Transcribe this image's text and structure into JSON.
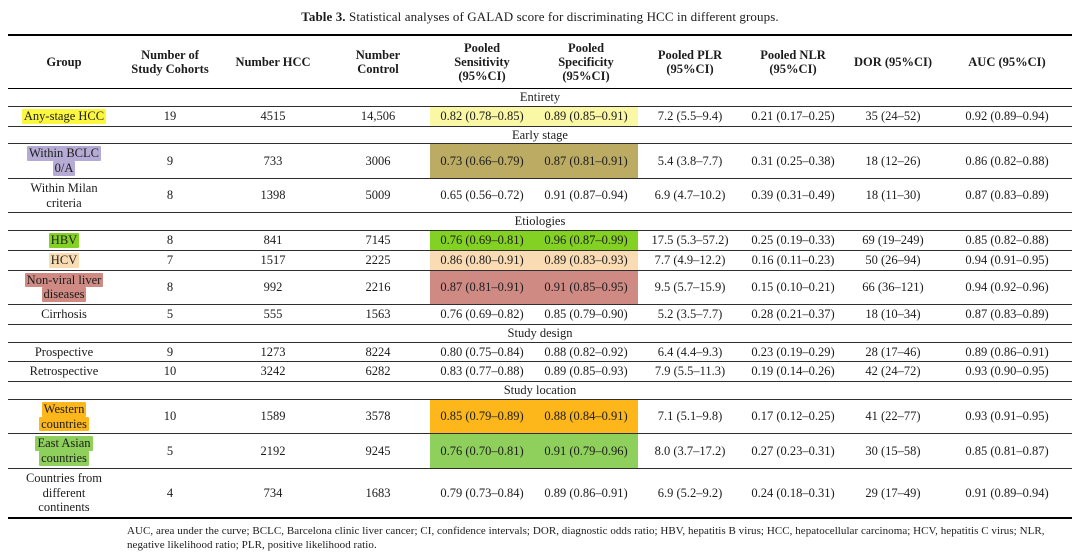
{
  "caption": {
    "bold": "Table 3.",
    "text": " Statistical analyses of GALAD score for discriminating HCC in different groups."
  },
  "table": {
    "columns": [
      "Group",
      "Number of\nStudy Cohorts",
      "Number HCC",
      "Number\nControl",
      "Pooled\nSensitivity\n(95%CI)",
      "Pooled\nSpecificity\n(95%CI)",
      "Pooled PLR\n(95%CI)",
      "Pooled NLR\n(95%CI)",
      "DOR (95%CI)",
      "AUC (95%CI)"
    ],
    "sections": [
      {
        "name": "Entirety",
        "rows": [
          {
            "group_lines": [
              "Any-stage HCC"
            ],
            "group_highlight": "#fbf73f",
            "value_highlight": "#faf8a5",
            "cohorts": "19",
            "hcc": "4515",
            "control": "14,506",
            "sens": "0.82 (0.78–0.85)",
            "spec": "0.89 (0.85–0.91)",
            "plr": "7.2 (5.5–9.4)",
            "nlr": "0.21 (0.17–0.25)",
            "dor": "35 (24–52)",
            "auc": "0.92 (0.89–0.94)"
          }
        ]
      },
      {
        "name": "Early stage",
        "rows": [
          {
            "group_lines": [
              "Within BCLC",
              "0/A"
            ],
            "group_highlight": "#b5abd5",
            "value_highlight": "#bcab62",
            "cohorts": "9",
            "hcc": "733",
            "control": "3006",
            "sens": "0.73 (0.66–0.79)",
            "spec": "0.87 (0.81–0.91)",
            "plr": "5.4 (3.8–7.7)",
            "nlr": "0.31 (0.25–0.38)",
            "dor": "18 (12–26)",
            "auc": "0.86 (0.82–0.88)"
          },
          {
            "group_lines": [
              "Within Milan",
              "criteria"
            ],
            "group_highlight": null,
            "value_highlight": null,
            "cohorts": "8",
            "hcc": "1398",
            "control": "5009",
            "sens": "0.65 (0.56–0.72)",
            "spec": "0.91 (0.87–0.94)",
            "plr": "6.9 (4.7–10.2)",
            "nlr": "0.39 (0.31–0.49)",
            "dor": "18 (11–30)",
            "auc": "0.87 (0.83–0.89)"
          }
        ]
      },
      {
        "name": "Etiologies",
        "rows": [
          {
            "group_lines": [
              "HBV"
            ],
            "group_highlight": "#83d223",
            "value_highlight": "#83d223",
            "cohorts": "8",
            "hcc": "841",
            "control": "7145",
            "sens": "0.76 (0.69–0.81)",
            "spec": "0.96 (0.87–0.99)",
            "plr": "17.5 (5.3–57.2)",
            "nlr": "0.25 (0.19–0.33)",
            "dor": "69 (19–249)",
            "auc": "0.85 (0.82–0.88)"
          },
          {
            "group_lines": [
              "HCV"
            ],
            "group_highlight": "#fadcb4",
            "value_highlight": "#fadcb4",
            "cohorts": "7",
            "hcc": "1517",
            "control": "2225",
            "sens": "0.86 (0.80–0.91)",
            "spec": "0.89 (0.83–0.93)",
            "plr": "7.7 (4.9–12.2)",
            "nlr": "0.16 (0.11–0.23)",
            "dor": "50 (26–94)",
            "auc": "0.94 (0.91–0.95)"
          },
          {
            "group_lines": [
              "Non-viral liver",
              "diseases"
            ],
            "group_highlight": "#d08a84",
            "value_highlight": "#d08a84",
            "cohorts": "8",
            "hcc": "992",
            "control": "2216",
            "sens": "0.87 (0.81–0.91)",
            "spec": "0.91 (0.85–0.95)",
            "plr": "9.5 (5.7–15.9)",
            "nlr": "0.15 (0.10–0.21)",
            "dor": "66 (36–121)",
            "auc": "0.94 (0.92–0.96)"
          },
          {
            "group_lines": [
              "Cirrhosis"
            ],
            "group_highlight": null,
            "value_highlight": null,
            "cohorts": "5",
            "hcc": "555",
            "control": "1563",
            "sens": "0.76 (0.69–0.82)",
            "spec": "0.85 (0.79–0.90)",
            "plr": "5.2 (3.5–7.7)",
            "nlr": "0.28 (0.21–0.37)",
            "dor": "18 (10–34)",
            "auc": "0.87 (0.83–0.89)"
          }
        ]
      },
      {
        "name": "Study design",
        "rows": [
          {
            "group_lines": [
              "Prospective"
            ],
            "group_highlight": null,
            "value_highlight": null,
            "cohorts": "9",
            "hcc": "1273",
            "control": "8224",
            "sens": "0.80 (0.75–0.84)",
            "spec": "0.88 (0.82–0.92)",
            "plr": "6.4 (4.4–9.3)",
            "nlr": "0.23 (0.19–0.29)",
            "dor": "28 (17–46)",
            "auc": "0.89 (0.86–0.91)"
          },
          {
            "group_lines": [
              "Retrospective"
            ],
            "group_highlight": null,
            "value_highlight": null,
            "cohorts": "10",
            "hcc": "3242",
            "control": "6282",
            "sens": "0.83 (0.77–0.88)",
            "spec": "0.89 (0.85–0.93)",
            "plr": "7.9 (5.5–11.3)",
            "nlr": "0.19 (0.14–0.26)",
            "dor": "42 (24–72)",
            "auc": "0.93 (0.90–0.95)"
          }
        ]
      },
      {
        "name": "Study location",
        "rows": [
          {
            "group_lines": [
              "Western",
              "countries"
            ],
            "group_highlight": "#fdb71b",
            "value_highlight": "#fdb71b",
            "cohorts": "10",
            "hcc": "1589",
            "control": "3578",
            "sens": "0.85 (0.79–0.89)",
            "spec": "0.88 (0.84–0.91)",
            "plr": "7.1 (5.1–9.8)",
            "nlr": "0.17 (0.12–0.25)",
            "dor": "41 (22–77)",
            "auc": "0.93 (0.91–0.95)"
          },
          {
            "group_lines": [
              "East Asian",
              "countries"
            ],
            "group_highlight": "#8fd05c",
            "value_highlight": "#8fd05c",
            "cohorts": "5",
            "hcc": "2192",
            "control": "9245",
            "sens": "0.76 (0.70–0.81)",
            "spec": "0.91 (0.79–0.96)",
            "plr": "8.0 (3.7–17.2)",
            "nlr": "0.27 (0.23–0.31)",
            "dor": "30 (15–58)",
            "auc": "0.85 (0.81–0.87)"
          },
          {
            "group_lines": [
              "Countries from",
              "different",
              "continents"
            ],
            "group_highlight": null,
            "value_highlight": null,
            "cohorts": "4",
            "hcc": "734",
            "control": "1683",
            "sens": "0.79 (0.73–0.84)",
            "spec": "0.89 (0.86–0.91)",
            "plr": "6.9 (5.2–9.2)",
            "nlr": "0.24 (0.18–0.31)",
            "dor": "29 (17–49)",
            "auc": "0.91 (0.89–0.94)"
          }
        ]
      }
    ]
  },
  "footnote": "AUC, area under the curve; BCLC, Barcelona clinic liver cancer; CI, confidence intervals; DOR, diagnostic odds ratio; HBV, hepatitis B virus; HCC, hepatocellular carcinoma; HCV, hepatitis C virus; NLR, negative likelihood ratio; PLR, positive likelihood ratio."
}
